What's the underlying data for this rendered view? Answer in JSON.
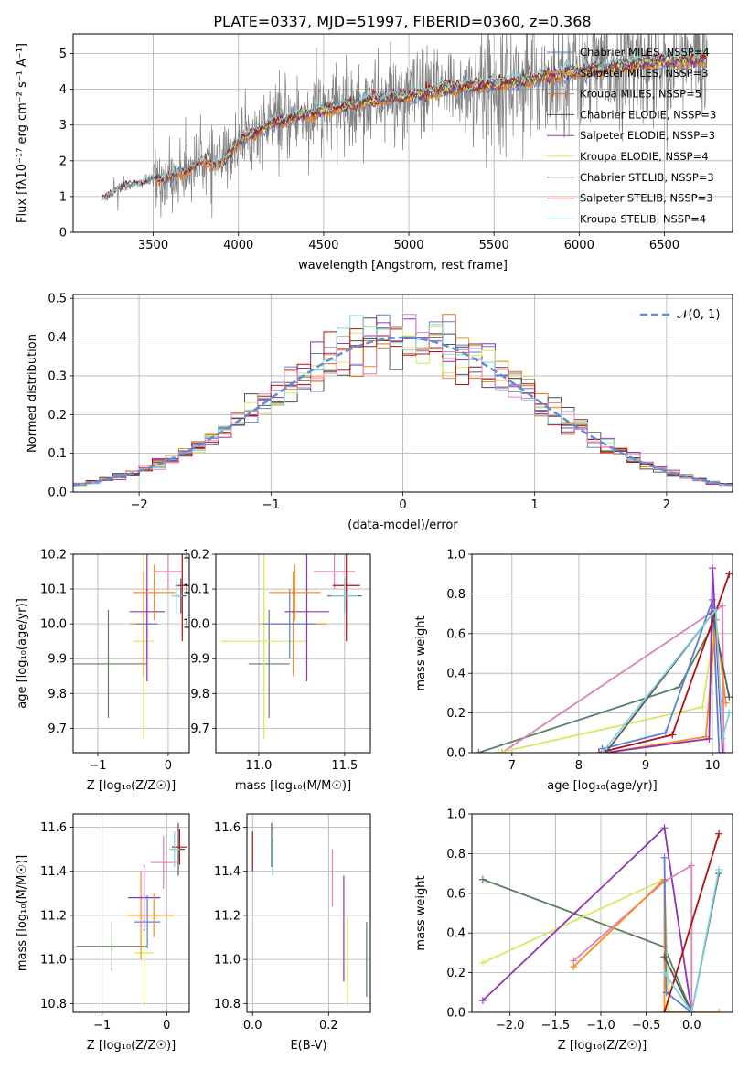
{
  "figure_title": "PLATE=0337, MJD=51997, FIBERID=0360, z=0.368",
  "colors": {
    "chabrier_miles": "#5b7fd6",
    "salpeter_miles": "#ff8c1a",
    "kroupa_miles": "#e0701f",
    "chabrier_elodie": "#4a4a4a",
    "salpeter_elodie": "#8e35b5",
    "kroupa_elodie": "#d7e85a",
    "chabrier_stelib": "#5a5a5a",
    "salpeter_stelib": "#b01010",
    "kroupa_stelib": "#7fd3dc",
    "pink": "#e07fb8",
    "darkgreen": "#5a8060",
    "normal_curve": "#5b8fd6"
  },
  "chart_data": [
    {
      "id": "spectrum",
      "type": "line",
      "xlabel": "wavelength [Angstrom, rest frame]",
      "ylabel": "Flux [fλ10⁻¹⁷ erg cm⁻² s⁻¹ A⁻¹]",
      "xlim": [
        3030,
        6900
      ],
      "ylim": [
        0,
        5.55
      ],
      "xticks": [
        3500,
        4000,
        4500,
        5000,
        5500,
        6000,
        6500
      ],
      "yticks": [
        0,
        1,
        2,
        3,
        4,
        5
      ],
      "legend_position": "top-right",
      "legend": [
        "Chabrier MILES, NSSP=4",
        "Salpeter MILES, NSSP=3",
        "Kroupa MILES, NSSP=5",
        "Chabrier ELODIE, NSSP=3",
        "Salpeter ELODIE, NSSP=3",
        "Kroupa ELODIE, NSSP=4",
        "Chabrier STELIB, NSSP=3",
        "Salpeter STELIB, NSSP=3",
        "Kroupa STELIB, NSSP=4"
      ],
      "continuum": {
        "x": [
          3200,
          3300,
          3400,
          3500,
          3600,
          3700,
          3800,
          3900,
          4000,
          4200,
          4400,
          4600,
          4800,
          5000,
          5200,
          5400,
          5600,
          5800,
          6000,
          6200,
          6400,
          6600,
          6750
        ],
        "y": [
          0.9,
          1.25,
          1.35,
          1.45,
          1.55,
          1.75,
          2.0,
          1.9,
          2.55,
          3.05,
          3.3,
          3.5,
          3.7,
          3.8,
          4.0,
          4.1,
          4.2,
          4.35,
          4.5,
          4.6,
          4.75,
          4.8,
          4.85
        ]
      }
    },
    {
      "id": "residuals",
      "type": "line",
      "xlabel": "(data-model)/error",
      "ylabel": "Normed distribution",
      "xlim": [
        -2.5,
        2.5
      ],
      "ylim": [
        0,
        0.51
      ],
      "xticks": [
        -2,
        -1,
        0,
        1,
        2
      ],
      "yticks": [
        0.0,
        0.1,
        0.2,
        0.3,
        0.4,
        0.5
      ],
      "legend_position": "top-right",
      "legend": [
        "𝒩(0, 1)"
      ]
    },
    {
      "id": "age_vs_z",
      "type": "scatter",
      "xlabel": "Z [log₁₀(Z/Z☉)]",
      "ylabel": "age  [log₁₀(age/yr)]",
      "xlim": [
        -1.35,
        0.3
      ],
      "ylim": [
        9.63,
        10.2
      ],
      "xticks": [
        -1,
        0
      ],
      "yticks": [
        9.7,
        9.8,
        9.9,
        10.0,
        10.1,
        10.2
      ],
      "points": [
        {
          "c": "darkgreen",
          "x": -0.85,
          "xerr": 0.55,
          "y": 9.885,
          "yerr": 0.155
        },
        {
          "c": "kroupa_elodie",
          "x": -0.35,
          "xerr": 0.15,
          "y": 9.95,
          "yerr": 0.28
        },
        {
          "c": "salpeter_miles",
          "x": -0.35,
          "xerr": 0.2,
          "y": 10.0,
          "yerr": 0.15
        },
        {
          "c": "chabrier_miles",
          "x": -0.3,
          "xerr": 0.15,
          "y": 10.0,
          "yerr": 0.1
        },
        {
          "c": "salpeter_elodie",
          "x": -0.3,
          "xerr": 0.25,
          "y": 10.035,
          "yerr": 0.2
        },
        {
          "c": "salpeter_miles",
          "x": -0.2,
          "xerr": 0.3,
          "y": 10.09,
          "yerr": 0.08
        },
        {
          "c": "pink",
          "x": 0.0,
          "xerr": 0.2,
          "y": 10.15,
          "yerr": 0.05
        },
        {
          "c": "salpeter_stelib",
          "x": 0.2,
          "xerr": 0.1,
          "y": 10.11,
          "yerr": 0.16
        },
        {
          "c": "chabrier_stelib",
          "x": 0.18,
          "xerr": 0.08,
          "y": 10.08,
          "yerr": 0.05
        },
        {
          "c": "kroupa_stelib",
          "x": 0.12,
          "xerr": 0.08,
          "y": 10.08,
          "yerr": 0.05
        }
      ]
    },
    {
      "id": "age_vs_mass",
      "type": "scatter",
      "xlabel": "mass [log₁₀(M/M☉)]",
      "ylabel": "",
      "xlim": [
        10.75,
        11.65
      ],
      "ylim": [
        9.63,
        10.2
      ],
      "xticks": [
        11.0,
        11.5
      ],
      "yticks": [
        9.7,
        9.8,
        9.9,
        10.0,
        10.1,
        10.2
      ],
      "points": [
        {
          "c": "darkgreen",
          "x": 11.06,
          "xerr": 0.12,
          "y": 9.885,
          "yerr": 0.155
        },
        {
          "c": "kroupa_elodie",
          "x": 11.03,
          "xerr": 0.25,
          "y": 9.95,
          "yerr": 0.28
        },
        {
          "c": "salpeter_miles",
          "x": 11.2,
          "xerr": 0.2,
          "y": 10.0,
          "yerr": 0.15
        },
        {
          "c": "chabrier_miles",
          "x": 11.18,
          "xerr": 0.15,
          "y": 10.0,
          "yerr": 0.1
        },
        {
          "c": "salpeter_elodie",
          "x": 11.28,
          "xerr": 0.13,
          "y": 10.035,
          "yerr": 0.2
        },
        {
          "c": "salpeter_miles",
          "x": 11.21,
          "xerr": 0.15,
          "y": 10.09,
          "yerr": 0.08
        },
        {
          "c": "pink",
          "x": 11.44,
          "xerr": 0.12,
          "y": 10.15,
          "yerr": 0.05
        },
        {
          "c": "salpeter_stelib",
          "x": 11.51,
          "xerr": 0.08,
          "y": 10.11,
          "yerr": 0.16
        },
        {
          "c": "chabrier_stelib",
          "x": 11.5,
          "xerr": 0.1,
          "y": 10.08,
          "yerr": 0.05
        },
        {
          "c": "kroupa_stelib",
          "x": 11.5,
          "xerr": 0.08,
          "y": 10.08,
          "yerr": 0.05
        }
      ]
    },
    {
      "id": "weight_vs_age",
      "type": "line",
      "xlabel": "age  [log₁₀(age/yr)]",
      "ylabel": "mass weight",
      "xlim": [
        6.4,
        10.3
      ],
      "ylim": [
        0,
        1
      ],
      "xticks": [
        7,
        8,
        9,
        10
      ],
      "yticks": [
        0.0,
        0.2,
        0.4,
        0.6,
        0.8,
        1.0
      ],
      "series": [
        {
          "c": "darkgreen",
          "x": [
            6.5,
            9.5,
            10.05
          ],
          "y": [
            0.0,
            0.33,
            0.67
          ]
        },
        {
          "c": "pink",
          "x": [
            6.85,
            10.0,
            10.15,
            10.17
          ],
          "y": [
            0.0,
            0.71,
            0.74,
            0.0
          ]
        },
        {
          "c": "kroupa_elodie",
          "x": [
            6.8,
            9.85,
            10.05,
            10.15
          ],
          "y": [
            0.0,
            0.23,
            0.67,
            0.0
          ]
        },
        {
          "c": "chabrier_miles",
          "x": [
            8.35,
            9.3,
            10.0,
            10.1
          ],
          "y": [
            0.02,
            0.1,
            0.77,
            0.0
          ]
        },
        {
          "c": "salpeter_miles",
          "x": [
            8.4,
            9.9,
            10.05,
            10.2
          ],
          "y": [
            0.0,
            0.08,
            0.67,
            0.25
          ]
        },
        {
          "c": "salpeter_elodie",
          "x": [
            8.4,
            9.95,
            10.0,
            10.15
          ],
          "y": [
            0.0,
            0.07,
            0.93,
            0.0
          ]
        },
        {
          "c": "salpeter_stelib",
          "x": [
            8.3,
            9.4,
            10.25
          ],
          "y": [
            0.0,
            0.09,
            0.9
          ]
        },
        {
          "c": "chabrier_stelib",
          "x": [
            8.4,
            10.0,
            10.25
          ],
          "y": [
            0.0,
            0.7,
            0.28
          ]
        },
        {
          "c": "kroupa_stelib",
          "x": [
            8.35,
            10.05,
            10.15,
            10.25
          ],
          "y": [
            0.0,
            0.72,
            0.07,
            0.2
          ]
        }
      ]
    },
    {
      "id": "mass_vs_z",
      "type": "scatter",
      "xlabel": "Z [log₁₀(Z/Z☉)]",
      "ylabel": "mass [log₁₀(M/M☉)]",
      "xlim": [
        -1.45,
        0.35
      ],
      "ylim": [
        10.76,
        11.66
      ],
      "xticks": [
        -1,
        0
      ],
      "yticks": [
        10.8,
        11.0,
        11.2,
        11.4,
        11.6
      ],
      "points": [
        {
          "c": "darkgreen",
          "x": -0.85,
          "xerr": 0.55,
          "y": 11.06,
          "yerr": 0.11
        },
        {
          "c": "kroupa_elodie",
          "x": -0.35,
          "xerr": 0.15,
          "y": 11.03,
          "yerr": 0.24
        },
        {
          "c": "salpeter_miles",
          "x": -0.4,
          "xerr": 0.2,
          "y": 11.2,
          "yerr": 0.2
        },
        {
          "c": "chabrier_miles",
          "x": -0.3,
          "xerr": 0.2,
          "y": 11.17,
          "yerr": 0.12
        },
        {
          "c": "salpeter_elodie",
          "x": -0.35,
          "xerr": 0.25,
          "y": 11.28,
          "yerr": 0.15
        },
        {
          "c": "salpeter_miles",
          "x": -0.2,
          "xerr": 0.3,
          "y": 11.2,
          "yerr": 0.1
        },
        {
          "c": "pink",
          "x": -0.05,
          "xerr": 0.2,
          "y": 11.44,
          "yerr": 0.12
        },
        {
          "c": "salpeter_stelib",
          "x": 0.2,
          "xerr": 0.12,
          "y": 11.51,
          "yerr": 0.08
        },
        {
          "c": "chabrier_stelib",
          "x": 0.18,
          "xerr": 0.1,
          "y": 11.5,
          "yerr": 0.12
        },
        {
          "c": "kroupa_stelib",
          "x": 0.12,
          "xerr": 0.08,
          "y": 11.5,
          "yerr": 0.08
        }
      ]
    },
    {
      "id": "mass_vs_ebv",
      "type": "scatter",
      "xlabel": "E(B-V)",
      "ylabel": "",
      "xlim": [
        -0.015,
        0.31
      ],
      "ylim": [
        10.76,
        11.66
      ],
      "xticks": [
        0.0,
        0.2
      ],
      "yticks": [
        10.8,
        11.0,
        11.2,
        11.4,
        11.6
      ],
      "vlines": [
        {
          "c": "salpeter_stelib",
          "x": 0.0,
          "y0": 11.4,
          "y1": 11.58
        },
        {
          "c": "chabrier_stelib",
          "x": 0.05,
          "y0": 11.42,
          "y1": 11.62
        },
        {
          "c": "kroupa_stelib",
          "x": 0.053,
          "y0": 11.38,
          "y1": 11.55
        },
        {
          "c": "pink",
          "x": 0.21,
          "y0": 11.24,
          "y1": 11.5
        },
        {
          "c": "salpeter_elodie",
          "x": 0.24,
          "y0": 10.9,
          "y1": 11.38
        },
        {
          "c": "kroupa_elodie",
          "x": 0.25,
          "y0": 10.79,
          "y1": 11.2
        },
        {
          "c": "darkgreen",
          "x": 0.3,
          "y0": 10.83,
          "y1": 11.17
        }
      ]
    },
    {
      "id": "weight_vs_z",
      "type": "line",
      "xlabel": "Z [log₁₀(Z/Z☉)]",
      "ylabel": "mass weight",
      "xlim": [
        -2.42,
        0.45
      ],
      "ylim": [
        0,
        1
      ],
      "xticks": [
        -2.0,
        -1.5,
        -1.0,
        -0.5,
        0.0
      ],
      "yticks": [
        0.0,
        0.2,
        0.4,
        0.6,
        0.8,
        1.0
      ],
      "series": [
        {
          "c": "darkgreen",
          "x": [
            -2.3,
            -0.3,
            0.0
          ],
          "y": [
            0.67,
            0.33,
            0.0
          ]
        },
        {
          "c": "kroupa_elodie",
          "x": [
            -2.3,
            -0.3,
            -0.25,
            0.0
          ],
          "y": [
            0.25,
            0.67,
            0.0,
            0.0
          ]
        },
        {
          "c": "salpeter_elodie",
          "x": [
            -2.3,
            -0.3,
            0.0
          ],
          "y": [
            0.06,
            0.93,
            0.0
          ]
        },
        {
          "c": "pink",
          "x": [
            -1.3,
            -0.3,
            0.0,
            0.0
          ],
          "y": [
            0.26,
            0.66,
            0.74,
            0.0
          ]
        },
        {
          "c": "salpeter_miles",
          "x": [
            -1.3,
            -0.3,
            -0.3,
            0.0,
            0.3
          ],
          "y": [
            0.23,
            0.67,
            0.0,
            0.0,
            0.0
          ]
        },
        {
          "c": "chabrier_miles",
          "x": [
            -0.3,
            -0.28,
            0.0
          ],
          "y": [
            0.78,
            0.1,
            0.0
          ]
        },
        {
          "c": "salpeter_stelib",
          "x": [
            -0.3,
            0.3
          ],
          "y": [
            0.0,
            0.9
          ]
        },
        {
          "c": "chabrier_stelib",
          "x": [
            -0.3,
            0.0,
            0.3
          ],
          "y": [
            0.28,
            0.0,
            0.7
          ]
        },
        {
          "c": "kroupa_stelib",
          "x": [
            -0.3,
            0.0,
            0.3
          ],
          "y": [
            0.2,
            0.0,
            0.72
          ]
        }
      ]
    }
  ]
}
